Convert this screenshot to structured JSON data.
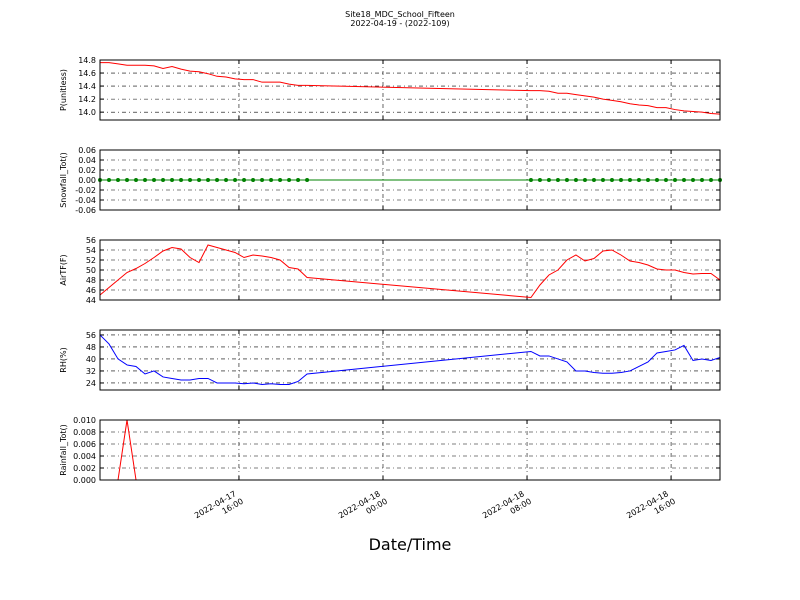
{
  "chart_data": {
    "title": "Site18_MDC_School_Fifteen",
    "subtitle": "2022-04-19 - (2022-109)",
    "xlabel": "Date/Time",
    "xlim": [
      "2022-04-17 08:17",
      "2022-04-18 18:43"
    ],
    "xticks": [
      "2022-04-17 16:00",
      "2022-04-18 00:00",
      "2022-04-18 08:00",
      "2022-04-18 16:00"
    ],
    "grid": true,
    "x": [
      "2022-04-17 08:17",
      "2022-04-17 08:47",
      "2022-04-17 09:17",
      "2022-04-17 09:47",
      "2022-04-17 10:17",
      "2022-04-17 10:47",
      "2022-04-17 11:17",
      "2022-04-17 11:47",
      "2022-04-17 12:17",
      "2022-04-17 12:47",
      "2022-04-17 13:17",
      "2022-04-17 13:47",
      "2022-04-17 14:17",
      "2022-04-17 14:47",
      "2022-04-17 15:17",
      "2022-04-17 15:47",
      "2022-04-17 16:17",
      "2022-04-17 16:47",
      "2022-04-17 17:17",
      "2022-04-17 17:47",
      "2022-04-17 18:17",
      "2022-04-17 18:47",
      "2022-04-17 19:17",
      "2022-04-17 19:47",
      "2022-04-18 08:13",
      "2022-04-18 08:43",
      "2022-04-18 09:13",
      "2022-04-18 09:43",
      "2022-04-18 10:13",
      "2022-04-18 10:43",
      "2022-04-18 11:13",
      "2022-04-18 11:43",
      "2022-04-18 12:13",
      "2022-04-18 12:43",
      "2022-04-18 13:13",
      "2022-04-18 13:43",
      "2022-04-18 14:13",
      "2022-04-18 14:43",
      "2022-04-18 15:13",
      "2022-04-18 15:43",
      "2022-04-18 16:13",
      "2022-04-18 16:43",
      "2022-04-18 17:13",
      "2022-04-18 17:43",
      "2022-04-18 18:13",
      "2022-04-18 18:43"
    ],
    "panels": [
      {
        "type": "line",
        "ylabel": "P(unitless)",
        "ylim": [
          13.88,
          14.8
        ],
        "yticks": [
          {
            "value": 14,
            "label": "14.0"
          },
          14.2,
          14.4,
          14.6,
          14.8
        ],
        "series": [
          {
            "color": "#ff0000",
            "values": [
              14.76,
              14.76,
              14.74,
              14.72,
              14.72,
              14.72,
              14.71,
              14.67,
              14.7,
              14.66,
              14.63,
              14.62,
              14.59,
              14.55,
              14.54,
              14.51,
              14.5,
              14.5,
              14.46,
              14.46,
              14.46,
              14.43,
              14.41,
              14.41,
              14.33,
              14.33,
              14.32,
              14.29,
              14.29,
              14.27,
              14.25,
              14.23,
              14.2,
              14.18,
              14.16,
              14.13,
              14.11,
              14.1,
              14.07,
              14.07,
              14.04,
              14.02,
              14.01,
              14,
              13.98,
              13.97
            ]
          }
        ]
      },
      {
        "type": "line",
        "ylabel": "Snowfall_Tot()",
        "ylim": [
          -0.06,
          0.06
        ],
        "yticks": [
          -0.06,
          -0.04,
          -0.02,
          {
            "value": 0,
            "label": "0.00"
          },
          0.02,
          0.04,
          0.06
        ],
        "series": [
          {
            "color": "#008000",
            "marker": "o",
            "values": [
              0,
              0,
              0,
              0,
              0,
              0,
              0,
              0,
              0,
              0,
              0,
              0,
              0,
              0,
              0,
              0,
              0,
              0,
              0,
              0,
              0,
              0,
              0,
              0,
              0,
              0,
              0,
              0,
              0,
              0,
              0,
              0,
              0,
              0,
              0,
              0,
              0,
              0,
              0,
              0,
              0,
              0,
              0,
              0,
              0,
              0
            ]
          }
        ]
      },
      {
        "type": "line",
        "ylabel": "AirTF(F)",
        "ylim": [
          44,
          56
        ],
        "yticks": [
          44,
          46,
          48,
          50,
          52,
          54,
          56
        ],
        "series": [
          {
            "color": "#ff0000",
            "values": [
              45,
              46.5,
              48,
              49.5,
              50.3,
              51.3,
              52.5,
              53.8,
              54.5,
              54.2,
              52.5,
              51.5,
              55,
              54.5,
              54,
              53.5,
              52.5,
              53,
              52.8,
              52.5,
              52,
              50.5,
              50.2,
              48.5,
              44.5,
              47,
              49,
              50,
              52,
              53,
              51.8,
              52.3,
              53.8,
              54,
              53,
              51.8,
              51.5,
              51,
              50.2,
              50,
              50,
              49.5,
              49.2,
              49.3,
              49.3,
              48
            ]
          }
        ]
      },
      {
        "type": "line",
        "ylabel": "RH(%)",
        "ylim": [
          19.3,
          59.3
        ],
        "yticks": [
          24,
          32,
          40,
          48,
          56
        ],
        "series": [
          {
            "color": "#0000ff",
            "values": [
              56,
              50,
              40,
              36,
              35,
              30,
              32,
              28,
              27,
              26,
              26,
              27,
              27,
              24,
              24,
              24,
              23.5,
              24,
              23,
              23.5,
              23,
              23,
              25,
              30,
              45,
              42,
              42,
              40,
              38,
              32,
              32,
              31,
              30.5,
              30.5,
              31,
              32,
              35,
              38,
              44,
              45,
              46,
              49,
              39,
              40,
              39,
              41
            ]
          }
        ]
      },
      {
        "type": "line",
        "ylabel": "Rainfall_Tot()",
        "ylim": [
          0,
          0.01
        ],
        "yticks": [
          {
            "value": 0,
            "label": "0.000"
          },
          {
            "value": 0.002,
            "label": "0.002"
          },
          {
            "value": 0.004,
            "label": "0.004"
          },
          {
            "value": 0.006,
            "label": "0.006"
          },
          {
            "value": 0.008,
            "label": "0.008"
          },
          {
            "value": 0.01,
            "label": "0.010"
          }
        ],
        "series": [
          {
            "color": "#ff0000",
            "values": [
              0,
              0,
              0,
              0.01,
              0,
              0,
              0,
              0,
              0,
              0,
              0,
              0,
              0,
              0,
              0,
              0,
              0,
              0,
              0,
              0,
              0,
              0,
              0,
              0,
              0,
              0,
              0,
              0,
              0,
              0,
              0,
              0,
              0,
              0,
              0,
              0,
              0,
              0,
              0,
              0,
              0,
              0,
              0,
              0,
              0,
              0
            ]
          }
        ]
      }
    ]
  }
}
